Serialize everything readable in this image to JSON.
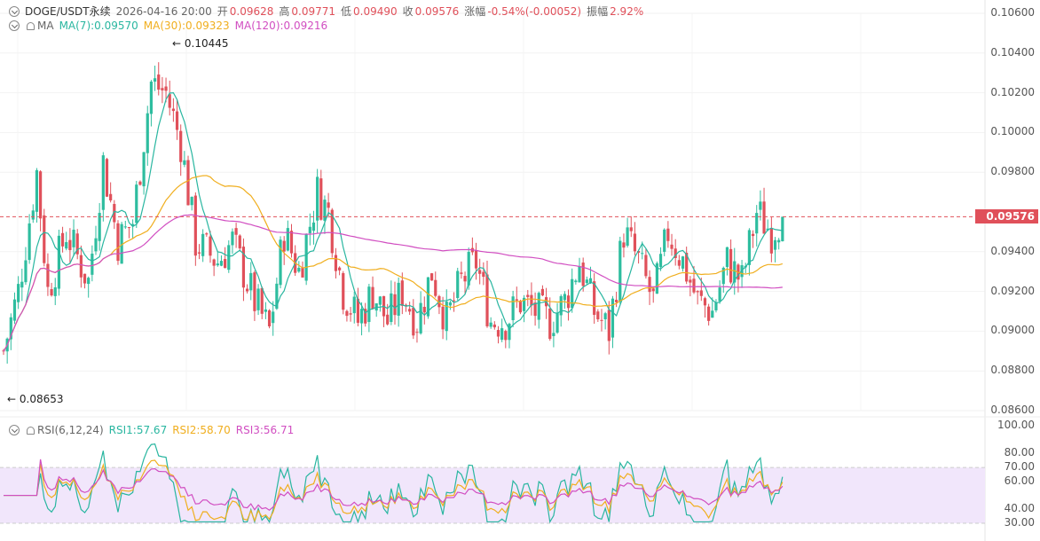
{
  "header": {
    "symbol": "DOGE/USDT永续",
    "datetime": "2026-04-16 20:00",
    "open_label": "开",
    "open": "0.09628",
    "high_label": "高",
    "high": "0.09771",
    "low_label": "低",
    "low": "0.09490",
    "close_label": "收",
    "close": "0.09576",
    "change_label": "涨幅",
    "change": "-0.54%(-0.00052)",
    "amplitude_label": "振幅",
    "amplitude": "2.92%"
  },
  "ma_legend": {
    "label": "MA",
    "ma7": "MA(7):0.09570",
    "ma30": "MA(30):0.09323",
    "ma120": "MA(120):0.09216"
  },
  "rsi_legend": {
    "label": "RSI(6,12,24)",
    "rsi1": "RSI1:57.67",
    "rsi2": "RSI2:58.70",
    "rsi3": "RSI3:56.71"
  },
  "price_axis": [
    "0.10600",
    "0.10400",
    "0.10200",
    "0.10000",
    "0.09800",
    "0.09400",
    "0.09200",
    "0.09000",
    "0.08800",
    "0.08600"
  ],
  "rsi_axis": [
    "100.00",
    "80.00",
    "70.00",
    "60.00",
    "40.00",
    "30.00"
  ],
  "last_price": "0.09576",
  "high_marker": "0.10445",
  "low_marker": "0.08653",
  "colors": {
    "up": "#2ebd9f",
    "down": "#e0505a",
    "ma7": "#29b6a0",
    "ma30": "#f0ae1e",
    "ma120": "#d14ec1",
    "rsi_band": "#f1e6fb"
  },
  "chart_data": {
    "type": "candlestick",
    "price_range": [
      0.086,
      0.106
    ],
    "rsi_range": [
      30,
      100
    ],
    "rsi_band": [
      30,
      70
    ],
    "anchors": [
      [
        0,
        0.089
      ],
      [
        4,
        0.092
      ],
      [
        9,
        0.098
      ],
      [
        12,
        0.092
      ],
      [
        17,
        0.095
      ],
      [
        23,
        0.0925
      ],
      [
        27,
        0.0985
      ],
      [
        31,
        0.0945
      ],
      [
        35,
        0.0955
      ],
      [
        40,
        0.1025
      ],
      [
        44,
        0.102
      ],
      [
        48,
        0.0995
      ],
      [
        52,
        0.0945
      ],
      [
        58,
        0.0935
      ],
      [
        62,
        0.0945
      ],
      [
        65,
        0.093
      ],
      [
        68,
        0.0915
      ],
      [
        72,
        0.09
      ],
      [
        76,
        0.095
      ],
      [
        80,
        0.093
      ],
      [
        85,
        0.097
      ],
      [
        88,
        0.096
      ],
      [
        92,
        0.092
      ],
      [
        96,
        0.0905
      ],
      [
        100,
        0.092
      ],
      [
        104,
        0.0905
      ],
      [
        108,
        0.092
      ],
      [
        112,
        0.0905
      ],
      [
        116,
        0.093
      ],
      [
        120,
        0.0905
      ],
      [
        124,
        0.0925
      ],
      [
        128,
        0.0935
      ],
      [
        132,
        0.0905
      ],
      [
        136,
        0.0905
      ],
      [
        140,
        0.0915
      ],
      [
        144,
        0.091
      ],
      [
        148,
        0.0905
      ],
      [
        152,
        0.0915
      ],
      [
        156,
        0.0935
      ],
      [
        160,
        0.091
      ],
      [
        164,
        0.09
      ],
      [
        168,
        0.095
      ],
      [
        172,
        0.0935
      ],
      [
        176,
        0.0915
      ],
      [
        180,
        0.095
      ],
      [
        184,
        0.0935
      ],
      [
        188,
        0.0915
      ],
      [
        192,
        0.091
      ],
      [
        196,
        0.0935
      ],
      [
        200,
        0.0925
      ],
      [
        204,
        0.096
      ],
      [
        208,
        0.095
      ],
      [
        211,
        0.0958
      ]
    ],
    "bars": 212
  }
}
